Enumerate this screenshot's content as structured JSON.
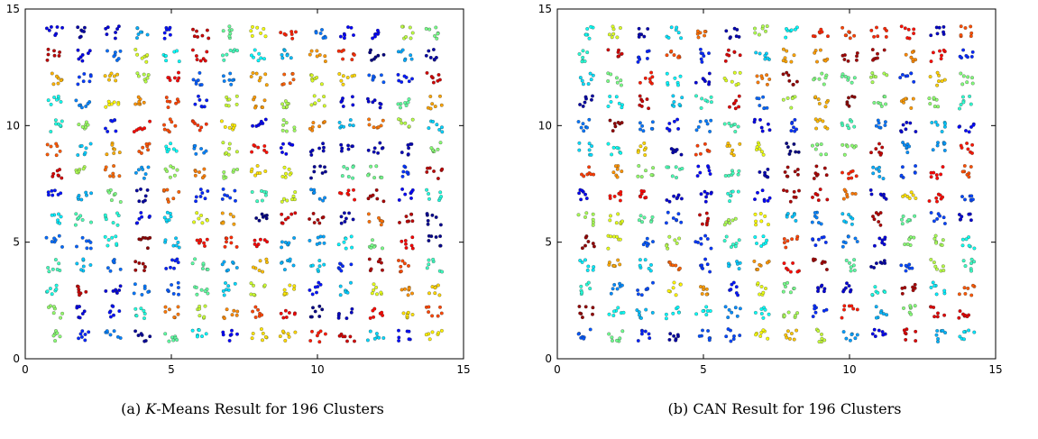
{
  "figure": {
    "panels": [
      {
        "caption_prefix": "(a) ",
        "caption_italic": "K",
        "caption_rest": "-Means Result for 196 Clusters"
      },
      {
        "caption_prefix": "(b) ",
        "caption_italic": "",
        "caption_rest": "CAN Result for 196 Clusters"
      }
    ]
  },
  "chart_data": [
    {
      "type": "scatter",
      "title": "",
      "xlabel": "",
      "ylabel": "",
      "xlim": [
        0,
        15
      ],
      "ylim": [
        0,
        15
      ],
      "xticks": [
        0,
        5,
        10,
        15
      ],
      "yticks": [
        0,
        5,
        10,
        15
      ],
      "grid": false,
      "colormap": "jet",
      "cluster_grid": {
        "x_centers": [
          1,
          2,
          3,
          4,
          5,
          6,
          7,
          8,
          9,
          10,
          11,
          12,
          13,
          14
        ],
        "y_centers": [
          1,
          2,
          3,
          4,
          5,
          6,
          7,
          8,
          9,
          10,
          11,
          12,
          13,
          14
        ]
      },
      "num_clusters": 196,
      "points_per_cluster": 7,
      "seed": 11
    },
    {
      "type": "scatter",
      "title": "",
      "xlabel": "",
      "ylabel": "",
      "xlim": [
        0,
        15
      ],
      "ylim": [
        0,
        15
      ],
      "xticks": [
        0,
        5,
        10,
        15
      ],
      "yticks": [
        0,
        5,
        10,
        15
      ],
      "grid": false,
      "colormap": "jet",
      "cluster_grid": {
        "x_centers": [
          1,
          2,
          3,
          4,
          5,
          6,
          7,
          8,
          9,
          10,
          11,
          12,
          13,
          14
        ],
        "y_centers": [
          1,
          2,
          3,
          4,
          5,
          6,
          7,
          8,
          9,
          10,
          11,
          12,
          13,
          14
        ]
      },
      "num_clusters": 196,
      "points_per_cluster": 7,
      "seed": 29
    }
  ]
}
